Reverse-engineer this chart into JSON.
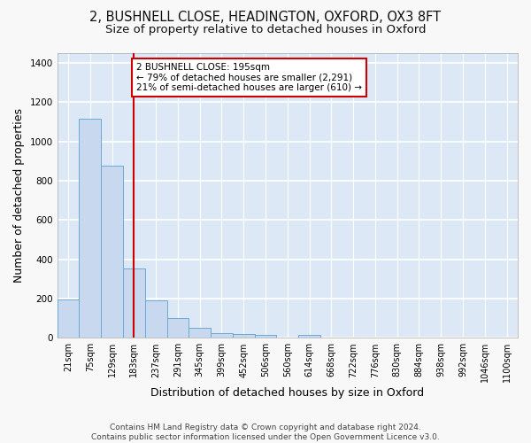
{
  "title_line1": "2, BUSHNELL CLOSE, HEADINGTON, OXFORD, OX3 8FT",
  "title_line2": "Size of property relative to detached houses in Oxford",
  "xlabel": "Distribution of detached houses by size in Oxford",
  "ylabel": "Number of detached properties",
  "categories": [
    "21sqm",
    "75sqm",
    "129sqm",
    "183sqm",
    "237sqm",
    "291sqm",
    "345sqm",
    "399sqm",
    "452sqm",
    "506sqm",
    "560sqm",
    "614sqm",
    "668sqm",
    "722sqm",
    "776sqm",
    "830sqm",
    "884sqm",
    "938sqm",
    "992sqm",
    "1046sqm",
    "1100sqm"
  ],
  "values": [
    195,
    1115,
    878,
    352,
    191,
    100,
    52,
    25,
    20,
    17,
    0,
    14,
    0,
    0,
    0,
    0,
    0,
    0,
    0,
    0,
    0
  ],
  "bar_color": "#c8d9ef",
  "bar_edge_color": "#6aaad4",
  "vline_x": 3,
  "vline_color": "#cc0000",
  "annotation_line1": "2 BUSHNELL CLOSE: 195sqm",
  "annotation_line2": "← 79% of detached houses are smaller (2,291)",
  "annotation_line3": "21% of semi-detached houses are larger (610) →",
  "annotation_box_facecolor": "#ffffff",
  "annotation_box_edgecolor": "#cc0000",
  "ylim": [
    0,
    1450
  ],
  "yticks": [
    0,
    200,
    400,
    600,
    800,
    1000,
    1200,
    1400
  ],
  "plot_bg_color": "#dce8f5",
  "grid_color": "#ffffff",
  "fig_bg_color": "#f8f8f8",
  "footer_line1": "Contains HM Land Registry data © Crown copyright and database right 2024.",
  "footer_line2": "Contains public sector information licensed under the Open Government Licence v3.0.",
  "title_fontsize": 10.5,
  "subtitle_fontsize": 9.5,
  "tick_fontsize": 7,
  "label_fontsize": 9,
  "annotation_fontsize": 7.5,
  "footer_fontsize": 6.5
}
